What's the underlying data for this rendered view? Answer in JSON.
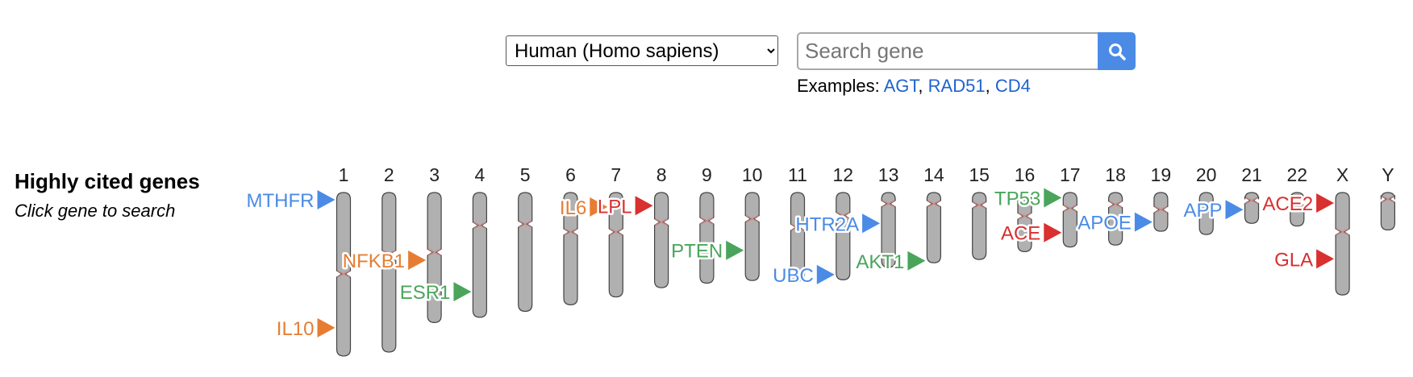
{
  "species_select": {
    "value": "Human (Homo sapiens)",
    "options": [
      "Human (Homo sapiens)"
    ]
  },
  "search": {
    "placeholder": "Search gene",
    "value": ""
  },
  "examples": {
    "prefix": "Examples:",
    "genes": [
      "AGT",
      "RAD51",
      "CD4"
    ],
    "link_color": "#1f63cf"
  },
  "ideogram": {
    "heading": "Highly cited genes",
    "subheading": "Click gene to search",
    "chromosomes": [
      {
        "name": "1",
        "length": 249,
        "centromere": 124
      },
      {
        "name": "2",
        "length": 243,
        "centromere": 93
      },
      {
        "name": "3",
        "length": 198,
        "centromere": 91
      },
      {
        "name": "4",
        "length": 190,
        "centromere": 50
      },
      {
        "name": "5",
        "length": 181,
        "centromere": 48
      },
      {
        "name": "6",
        "length": 171,
        "centromere": 60
      },
      {
        "name": "7",
        "length": 159,
        "centromere": 60
      },
      {
        "name": "8",
        "length": 145,
        "centromere": 45
      },
      {
        "name": "9",
        "length": 138,
        "centromere": 43
      },
      {
        "name": "10",
        "length": 134,
        "centromere": 40
      },
      {
        "name": "11",
        "length": 135,
        "centromere": 53
      },
      {
        "name": "12",
        "length": 133,
        "centromere": 35
      },
      {
        "name": "13",
        "length": 114,
        "centromere": 17
      },
      {
        "name": "14",
        "length": 107,
        "centromere": 17
      },
      {
        "name": "15",
        "length": 102,
        "centromere": 19
      },
      {
        "name": "16",
        "length": 90,
        "centromere": 36
      },
      {
        "name": "17",
        "length": 83,
        "centromere": 24
      },
      {
        "name": "18",
        "length": 80,
        "centromere": 18
      },
      {
        "name": "19",
        "length": 59,
        "centromere": 26
      },
      {
        "name": "20",
        "length": 64,
        "centromere": 28
      },
      {
        "name": "21",
        "length": 47,
        "centromere": 12
      },
      {
        "name": "22",
        "length": 51,
        "centromere": 15
      },
      {
        "name": "X",
        "length": 156,
        "centromere": 60
      },
      {
        "name": "Y",
        "length": 57,
        "centromere": 10
      }
    ],
    "genes": [
      {
        "name": "MTHFR",
        "chr": "1",
        "pos": 11,
        "color": "#4b8be6"
      },
      {
        "name": "IL10",
        "chr": "1",
        "pos": 206,
        "color": "#e67d33"
      },
      {
        "name": "NFKB1",
        "chr": "3",
        "pos": 103,
        "color": "#e67d33"
      },
      {
        "name": "ESR1",
        "chr": "4",
        "pos": 151,
        "color": "#4aa55b"
      },
      {
        "name": "IL6",
        "chr": "7",
        "pos": 22,
        "color": "#e67d33"
      },
      {
        "name": "LPL",
        "chr": "8",
        "pos": 20,
        "color": "#d93030"
      },
      {
        "name": "PTEN",
        "chr": "10",
        "pos": 88,
        "color": "#4aa55b"
      },
      {
        "name": "UBC",
        "chr": "12",
        "pos": 125,
        "color": "#4b8be6"
      },
      {
        "name": "HTR2A",
        "chr": "13",
        "pos": 47,
        "color": "#4b8be6"
      },
      {
        "name": "AKT1",
        "chr": "14",
        "pos": 104,
        "color": "#4aa55b"
      },
      {
        "name": "TP53",
        "chr": "17",
        "pos": 8,
        "color": "#4aa55b"
      },
      {
        "name": "ACE",
        "chr": "17",
        "pos": 61,
        "color": "#d93030"
      },
      {
        "name": "APOE",
        "chr": "19",
        "pos": 45,
        "color": "#4b8be6"
      },
      {
        "name": "APP",
        "chr": "21",
        "pos": 26,
        "color": "#4b8be6"
      },
      {
        "name": "ACE2",
        "chr": "X",
        "pos": 16,
        "color": "#d93030"
      },
      {
        "name": "GLA",
        "chr": "X",
        "pos": 101,
        "color": "#d93030"
      }
    ],
    "colors": {
      "chromosome_fill": "#b0b0b0",
      "chromosome_stroke": "#444444",
      "centromere": "#c98888"
    }
  }
}
